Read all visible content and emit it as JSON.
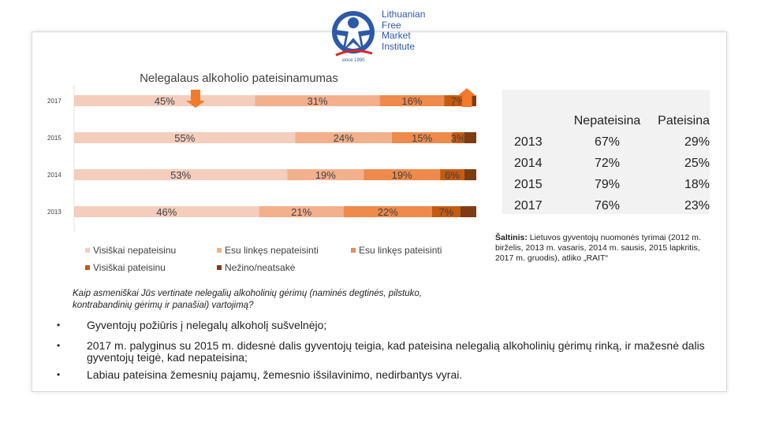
{
  "logo": {
    "lines": [
      "Lithuanian",
      "Free",
      "Market",
      "Institute"
    ],
    "seal": "since 1990",
    "colors": {
      "blue": "#2d5aa7",
      "red": "#d9262b"
    }
  },
  "chart_data": {
    "type": "bar",
    "stacked": true,
    "orientation": "horizontal",
    "title": "Nelegalaus alkoholio pateisinamumas",
    "categories": [
      "2017",
      "2015",
      "2014",
      "2013"
    ],
    "series": [
      {
        "name": "Visiškai nepateisinu",
        "values": [
          45,
          55,
          53,
          46
        ],
        "color": "#f4cdbd"
      },
      {
        "name": "Esu linkęs nepateisinti",
        "values": [
          31,
          24,
          19,
          21
        ],
        "color": "#f3b08c"
      },
      {
        "name": "Esu linkęs pateisinti",
        "values": [
          16,
          15,
          19,
          22
        ],
        "color": "#ee8a4b"
      },
      {
        "name": "Visiškai pateisinu",
        "values": [
          7,
          3,
          6,
          7
        ],
        "color": "#c55a11"
      },
      {
        "name": "Nežino/neatsakė",
        "values": [
          1,
          3,
          3,
          4
        ],
        "color": "#7f3c12"
      }
    ],
    "data_label_suffix": "%",
    "xlim": [
      0,
      100
    ],
    "legend_position": "bottom",
    "annotations": [
      "arrow-down-left",
      "arrow-up-right"
    ],
    "arrow_color": "#f27a2d"
  },
  "summary_table": {
    "headers": [
      "",
      "Nepateisina",
      "Pateisina"
    ],
    "rows": [
      [
        "2013",
        "67%",
        "29%"
      ],
      [
        "2014",
        "72%",
        "25%"
      ],
      [
        "2015",
        "79%",
        "18%"
      ],
      [
        "2017",
        "76%",
        "23%"
      ]
    ]
  },
  "source": {
    "label": "Šaltinis:",
    "text": " Lietuvos gyventojų nuomonės tyrimai (2012 m. birželis, 2013 m. vasaris, 2014 m. sausis, 2015 lapkritis, 2017 m. gruodis), atliko „RAIT“"
  },
  "question": "Kaip asmeniškai Jūs vertinate nelegalių alkoholinių gėrimų (naminės degtinės, pilstuko, kontrabandinių gėrimų ir panašiai) vartojimą?",
  "bullets": [
    "Gyventojų požiūris į nelegalų alkoholį sušvelnėjo;",
    "2017 m. palyginus su 2015 m. didesnė dalis gyventojų teigia, kad pateisina nelegalią alkoholinių gėrimų rinką, ir mažesnė dalis gyventojų teigė, kad nepateisina;",
    "Labiau pateisina žemesnių pajamų, žemesnio išsilavinimo, nedirbantys vyrai."
  ]
}
